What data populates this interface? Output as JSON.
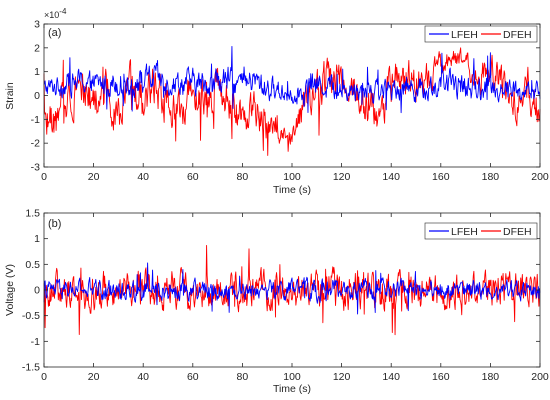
{
  "chart_data": [
    {
      "type": "line",
      "panel_label": "(a)",
      "xlabel": "Time (s)",
      "ylabel": "Strain",
      "y_exponent_label": "×10",
      "y_exponent_power": "-4",
      "xlim": [
        0,
        200
      ],
      "ylim": [
        -3,
        3
      ],
      "xticks": [
        "0",
        "20",
        "40",
        "60",
        "80",
        "100",
        "120",
        "140",
        "160",
        "180",
        "200"
      ],
      "yticks": [
        "-3",
        "-2",
        "-1",
        "0",
        "1",
        "2",
        "3"
      ],
      "grid": false,
      "legend_position": "top-right",
      "series": [
        {
          "name": "LFEH",
          "color": "#0000ff",
          "x": [
            0,
            5,
            10,
            15,
            20,
            25,
            30,
            35,
            40,
            45,
            50,
            55,
            60,
            65,
            70,
            75,
            80,
            85,
            90,
            95,
            100,
            105,
            110,
            115,
            120,
            125,
            130,
            135,
            140,
            145,
            150,
            155,
            160,
            165,
            170,
            175,
            180,
            185,
            190,
            195,
            200
          ],
          "values": [
            0.3,
            0.4,
            0.5,
            0.6,
            0.5,
            0.5,
            0.6,
            0.5,
            0.6,
            0.7,
            0.5,
            0.6,
            0.5,
            0.5,
            0.6,
            0.6,
            0.5,
            0.6,
            0.3,
            0.2,
            0.1,
            0.2,
            0.5,
            0.4,
            0.2,
            0.2,
            0.3,
            0.2,
            0.3,
            0.4,
            0.3,
            0.3,
            0.4,
            0.5,
            0.4,
            0.3,
            0.3,
            0.3,
            0.2,
            0.1,
            0.2
          ],
          "amplitude": [
            0.6,
            0.7,
            0.8,
            0.8,
            0.7,
            0.8,
            0.9,
            0.8,
            0.9,
            1.0,
            0.8,
            0.9,
            0.9,
            0.8,
            0.9,
            0.9,
            0.8,
            0.9,
            0.8,
            0.7,
            0.7,
            0.8,
            0.8,
            0.8,
            0.7,
            0.7,
            0.8,
            0.7,
            0.7,
            0.8,
            0.8,
            0.8,
            0.8,
            0.9,
            0.8,
            0.8,
            0.8,
            0.8,
            0.7,
            0.7,
            0.7
          ]
        },
        {
          "name": "DFEH",
          "color": "#ff0000",
          "x": [
            0,
            5,
            10,
            15,
            20,
            25,
            30,
            35,
            40,
            45,
            50,
            55,
            60,
            65,
            70,
            75,
            80,
            85,
            90,
            95,
            100,
            105,
            110,
            115,
            120,
            125,
            130,
            135,
            140,
            145,
            150,
            155,
            160,
            165,
            170,
            175,
            180,
            185,
            190,
            195,
            200
          ],
          "values": [
            -0.8,
            -1.2,
            0.2,
            0.6,
            -0.5,
            0.4,
            -1.0,
            0.3,
            -0.3,
            0.6,
            -0.4,
            -0.8,
            0.5,
            -0.2,
            0.4,
            -0.6,
            -1.0,
            -0.4,
            -1.2,
            -1.8,
            -1.6,
            -0.5,
            0.3,
            0.8,
            0.6,
            0.2,
            -0.3,
            -1.0,
            0.4,
            0.7,
            0.5,
            0.6,
            1.2,
            1.6,
            1.5,
            0.8,
            1.2,
            0.4,
            -0.4,
            0.3,
            -0.6
          ],
          "amplitude": [
            1.3,
            1.2,
            1.5,
            1.4,
            1.3,
            1.4,
            1.2,
            1.4,
            1.3,
            1.5,
            1.3,
            1.2,
            1.3,
            1.2,
            1.4,
            1.3,
            1.2,
            1.3,
            1.1,
            0.6,
            0.7,
            1.2,
            1.4,
            1.3,
            1.2,
            1.3,
            1.2,
            1.1,
            1.3,
            1.3,
            1.3,
            1.2,
            0.8,
            0.6,
            0.6,
            1.1,
            1.0,
            1.2,
            1.3,
            1.4,
            1.3
          ]
        }
      ]
    },
    {
      "type": "line",
      "panel_label": "(b)",
      "xlabel": "Time (s)",
      "ylabel": "Voltage (V)",
      "xlim": [
        0,
        200
      ],
      "ylim": [
        -1.5,
        1.5
      ],
      "xticks": [
        "0",
        "20",
        "40",
        "60",
        "80",
        "100",
        "120",
        "140",
        "160",
        "180",
        "200"
      ],
      "yticks": [
        "-1.5",
        "-1",
        "-0.5",
        "0",
        "0.5",
        "1",
        "1.5"
      ],
      "grid": false,
      "legend_position": "top-right",
      "series": [
        {
          "name": "LFEH",
          "color": "#0000ff",
          "x": [
            0,
            25,
            50,
            75,
            100,
            125,
            150,
            175,
            200
          ],
          "values": [
            0,
            0,
            0,
            0,
            0,
            0,
            0,
            0,
            0
          ],
          "amplitude": [
            0.28,
            0.3,
            0.3,
            0.28,
            0.3,
            0.3,
            0.28,
            0.28,
            0.28
          ]
        },
        {
          "name": "DFEH",
          "color": "#ff0000",
          "x": [
            0,
            25,
            50,
            75,
            100,
            125,
            150,
            175,
            200
          ],
          "values": [
            0,
            0,
            0,
            0,
            0,
            0,
            0,
            0,
            0
          ],
          "amplitude": [
            0.5,
            0.55,
            0.55,
            0.52,
            0.55,
            0.6,
            0.5,
            0.5,
            0.5
          ]
        }
      ]
    }
  ]
}
